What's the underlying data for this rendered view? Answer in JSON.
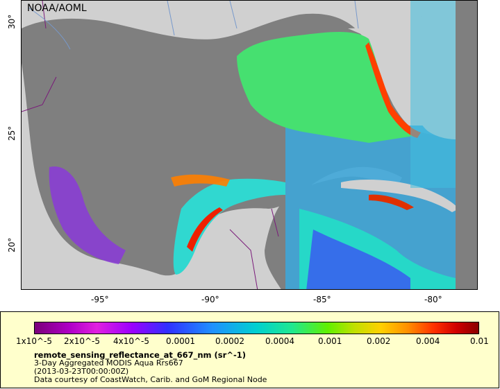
{
  "map": {
    "credit": "NOAA/AOML",
    "lon_ticks": [
      "-95°",
      "-90°",
      "-85°",
      "-80°"
    ],
    "lat_ticks": [
      "30°",
      "25°",
      "20°"
    ],
    "colors": {
      "land": "#d0d0d0",
      "no_data": "#7f7f7f",
      "border": "#7a1a7a",
      "river": "#7799cc"
    }
  },
  "legend": {
    "ticks": [
      "1x10^-5",
      "2x10^-5",
      "4x10^-5",
      "0.0001",
      "0.0002",
      "0.0004",
      "0.001",
      "0.002",
      "0.004",
      "0.01"
    ],
    "variable": "remote_sensing_reflectance_at_667_nm (sr^-1)",
    "dataset": "3-Day Aggregated MODIS Aqua Rrs667",
    "time": "(2013-03-23T00:00:00Z)",
    "courtesy": "Data courtesy of CoastWatch, Carib. and GoM Regional Node"
  }
}
